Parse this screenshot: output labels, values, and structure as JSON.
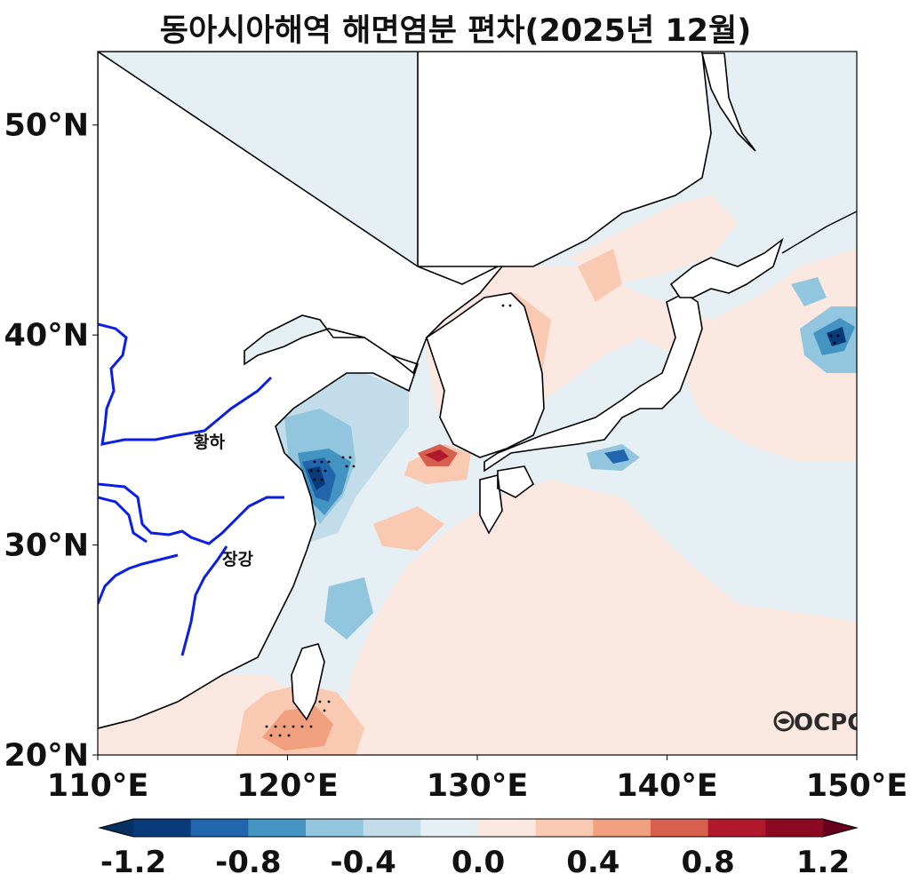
{
  "title": "동아시아해역 해면염분 편차(2025년 12월)",
  "map": {
    "lon_range": [
      110,
      150
    ],
    "lat_range": [
      20,
      53.5
    ],
    "x_ticks": [
      {
        "value": 110,
        "label": "110°E"
      },
      {
        "value": 120,
        "label": "120°E"
      },
      {
        "value": 130,
        "label": "130°E"
      },
      {
        "value": 140,
        "label": "140°E"
      },
      {
        "value": 150,
        "label": "150°E"
      }
    ],
    "y_ticks": [
      {
        "value": 50,
        "label": "50°N"
      },
      {
        "value": 40,
        "label": "40°N"
      },
      {
        "value": 30,
        "label": "30°N"
      },
      {
        "value": 20,
        "label": "20°N"
      }
    ],
    "rivers": [
      {
        "name": "황하",
        "label": "황하"
      },
      {
        "name": "장강",
        "label": "장강"
      }
    ],
    "logo": "OCPC",
    "river_color": "#0a1ee6",
    "land_color": "#ffffff"
  },
  "colorbar": {
    "levels": [
      -1.2,
      -1.0,
      -0.8,
      -0.6,
      -0.4,
      -0.2,
      0.0,
      0.2,
      0.4,
      0.6,
      0.8,
      1.0,
      1.2
    ],
    "colors": [
      "#093a7a",
      "#2166ac",
      "#4393c3",
      "#92c5de",
      "#c2dcea",
      "#e6eff4",
      "#fbe8e0",
      "#f9c9b1",
      "#f0a07f",
      "#d6604d",
      "#b2182b",
      "#8b0a22"
    ],
    "under_color": "#063062",
    "over_color": "#67001f",
    "tick_labels": [
      "-1.2",
      "-0.8",
      "-0.4",
      "0.0",
      "0.4",
      "0.8",
      "1.2"
    ]
  }
}
